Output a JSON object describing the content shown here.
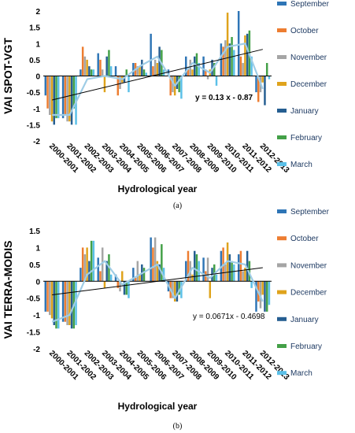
{
  "chart_data": [
    {
      "type": "bar",
      "caption": "(a)",
      "ylabel": "VAI SPOT-VGT",
      "xlabel": "Hydrological year",
      "ylim": [
        -2,
        2
      ],
      "yticks": [
        -2,
        -1.5,
        -1,
        -0.5,
        0,
        0.5,
        1,
        1.5,
        2
      ],
      "categories": [
        "2000-2001",
        "2001-2002",
        "2002-2003",
        "2003-2004",
        "2004-2005",
        "2005-2006",
        "2006-2007",
        "2007-2008",
        "2008-2009",
        "2009-2010",
        "2010-2011",
        "2011-2012",
        "2012-2013"
      ],
      "annotation": "y = 0.13 x - 0.87",
      "trendline": {
        "slope": 0.13,
        "intercept": -0.87
      },
      "series": [
        {
          "name": "September",
          "color": "#2e75b6",
          "values": [
            -0.6,
            -1.3,
            0.2,
            0.7,
            0.3,
            0.4,
            1.3,
            0.2,
            0.6,
            0.6,
            1.0,
            2.0,
            -0.5
          ]
        },
        {
          "name": "October",
          "color": "#ed7d31",
          "values": [
            -1.0,
            -1.2,
            0.9,
            0.5,
            -0.6,
            0.4,
            0.3,
            -0.6,
            0.2,
            0.2,
            0.9,
            0.6,
            -0.8
          ]
        },
        {
          "name": "November",
          "color": "#a5a5a5",
          "values": [
            -1.2,
            -1.4,
            0.6,
            0.2,
            -0.4,
            0.3,
            0.5,
            -0.5,
            0.5,
            -0.1,
            1.1,
            0.4,
            -0.5
          ]
        },
        {
          "name": "December",
          "color": "#dfa31c",
          "values": [
            -1.4,
            -1.4,
            0.5,
            -0.5,
            -0.2,
            0.3,
            0.4,
            -0.6,
            0.2,
            0.2,
            1.95,
            1.25,
            -0.2
          ]
        },
        {
          "name": "January",
          "color": "#255e91",
          "values": [
            -1.5,
            -1.5,
            0.3,
            0.6,
            -0.2,
            0.5,
            0.9,
            -0.4,
            0.6,
            0.5,
            1.0,
            1.3,
            -0.9
          ]
        },
        {
          "name": "February",
          "color": "#43a047",
          "values": [
            -1.3,
            -1.0,
            0.2,
            0.8,
            0.2,
            0.2,
            0.8,
            -0.5,
            0.7,
            0.4,
            1.2,
            1.4,
            0.4
          ]
        },
        {
          "name": "March",
          "color": "#5bc0e8",
          "values": [
            -1.3,
            -1.5,
            0.2,
            0.3,
            -0.5,
            0.1,
            0.2,
            -0.7,
            0.4,
            -0.3,
            0.8,
            0.6,
            -0.1
          ]
        }
      ],
      "mean_line": [
        -1.2,
        -1.2,
        -0.1,
        0.0,
        -0.1,
        0.3,
        0.6,
        -0.3,
        0.4,
        0.1,
        0.9,
        1.0,
        -0.4
      ]
    },
    {
      "type": "bar",
      "caption": "(b)",
      "ylabel": "VAI TERRA-MODIS",
      "xlabel": "Hydrological year",
      "ylim": [
        -2,
        1.5
      ],
      "yticks": [
        -2,
        -1.5,
        -1,
        -0.5,
        0,
        0.5,
        1,
        1.5
      ],
      "categories": [
        "2000-2001",
        "2001-2002",
        "2002-2003",
        "2003-2004",
        "2004-2005",
        "2005-2006",
        "2006-2007",
        "2007-2008",
        "2008-2009",
        "2009-2010",
        "2010-2011",
        "2011-2012",
        "2012-2013"
      ],
      "annotation": "y = 0.0671x - 0.4698",
      "trendline": {
        "slope": 0.0671,
        "intercept": -0.4698
      },
      "series": [
        {
          "name": "September",
          "color": "#2e75b6",
          "values": [
            -0.9,
            -1.2,
            0.4,
            0.7,
            0.2,
            0.4,
            1.3,
            -0.3,
            0.6,
            0.7,
            0.9,
            0.8,
            -0.9
          ]
        },
        {
          "name": "October",
          "color": "#ed7d31",
          "values": [
            -0.9,
            -1.2,
            1.0,
            0.3,
            -0.2,
            0.1,
            1.0,
            -0.5,
            0.9,
            0.3,
            1.0,
            0.9,
            -0.6
          ]
        },
        {
          "name": "November",
          "color": "#a5a5a5",
          "values": [
            -1.0,
            -1.3,
            0.8,
            1.0,
            -0.3,
            0.6,
            1.3,
            -0.5,
            0.6,
            0.7,
            0.5,
            0.3,
            -0.8
          ]
        },
        {
          "name": "December",
          "color": "#dfa31c",
          "values": [
            -1.1,
            -1.3,
            1.0,
            -0.2,
            0.3,
            0.2,
            0.6,
            -0.6,
            0.2,
            -0.5,
            1.15,
            0.4,
            -0.4
          ]
        },
        {
          "name": "January",
          "color": "#255e91",
          "values": [
            -1.3,
            -1.4,
            0.6,
            0.6,
            -0.4,
            0.5,
            0.5,
            -0.6,
            0.9,
            0.4,
            0.8,
            0.9,
            -0.9
          ]
        },
        {
          "name": "February",
          "color": "#43a047",
          "values": [
            -1.4,
            -1.4,
            1.2,
            0.8,
            -0.4,
            0.4,
            1.1,
            -0.4,
            0.8,
            0.5,
            0.6,
            0.6,
            -0.9
          ]
        },
        {
          "name": "March",
          "color": "#5bc0e8",
          "values": [
            -1.4,
            -1.3,
            1.2,
            0.2,
            -0.5,
            0.0,
            0.4,
            -0.5,
            0.6,
            0.2,
            0.5,
            -0.2,
            -0.7
          ]
        }
      ],
      "mean_line": [
        -1.2,
        -1.0,
        0.2,
        0.6,
        -0.1,
        0.2,
        0.5,
        -0.5,
        0.4,
        0.1,
        0.6,
        0.5,
        -0.6
      ]
    }
  ]
}
